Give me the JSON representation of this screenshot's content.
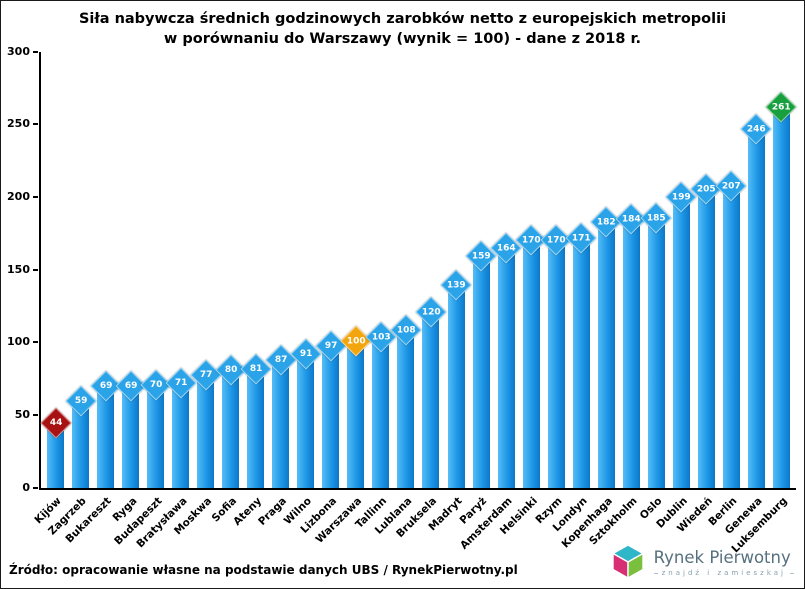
{
  "title": {
    "line1": "Siła nabywcza średnich godzinowych zarobków netto z europejskich metropolii",
    "line2": "w porównaniu do Warszawy (wynik = 100) - dane z 2018 r."
  },
  "source": "Źródło: opracowanie własne na podstawie danych UBS / RynekPierwotny.pl",
  "logo": {
    "name": "Rynek Pierwotny",
    "tagline": "znajdź i zamieszkaj"
  },
  "chart_data": {
    "type": "bar",
    "title": "Siła nabywcza średnich godzinowych zarobków netto z europejskich metropolii w porównaniu do Warszawy (wynik = 100) - dane z 2018 r.",
    "categories": [
      "Kijów",
      "Zagrzeb",
      "Bukareszt",
      "Ryga",
      "Budapeszt",
      "Bratysława",
      "Moskwa",
      "Sofia",
      "Ateny",
      "Praga",
      "Wilno",
      "Lizbona",
      "Warszawa",
      "Tallinn",
      "Lublana",
      "Bruksela",
      "Madryt",
      "Paryż",
      "Amsterdam",
      "Helsinki",
      "Rzym",
      "Londyn",
      "Kopenhaga",
      "Sztokholm",
      "Oslo",
      "Dublin",
      "Wiedeń",
      "Berlin",
      "Genewa",
      "Luksemburg"
    ],
    "values": [
      44,
      59,
      69,
      69,
      70,
      71,
      77,
      80,
      81,
      87,
      91,
      97,
      100,
      103,
      108,
      120,
      139,
      159,
      164,
      170,
      170,
      171,
      182,
      184,
      185,
      199,
      205,
      207,
      246,
      261
    ],
    "ylim": [
      0,
      300
    ],
    "yticks": [
      0,
      50,
      100,
      150,
      200,
      250,
      300
    ],
    "grid": false,
    "legend": "none",
    "bar_color": "#1e97e6",
    "bar_color_light": "#55bdf7",
    "bar_color_dark": "#0c77c8",
    "marker_default_color": "#2aa3e8",
    "marker_highlights": {
      "Kijów": "#a81212",
      "Warszawa": "#f2a50c",
      "Luksemburg": "#17a03d"
    }
  }
}
